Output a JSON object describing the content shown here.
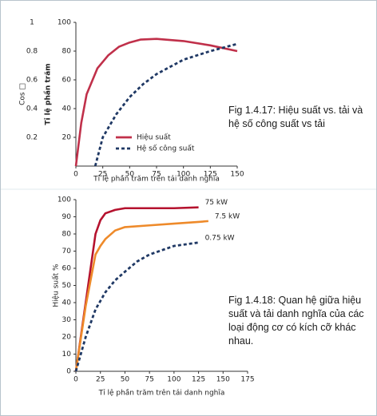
{
  "chart_data": [
    {
      "type": "line",
      "caption": "Fig 1.4.17: Hiệu suất vs. tải và hệ số công suất vs tải",
      "xlabel": "Tỉ lệ phần trăm trên tải danh nghĩa",
      "ylabel": "Tỉ lệ phần trăm",
      "y2label": "Cos □",
      "xlim": [
        0,
        150
      ],
      "xticks": [
        0,
        25,
        50,
        75,
        100,
        125,
        150
      ],
      "ylim": [
        0,
        100
      ],
      "yticks": [
        20,
        40,
        60,
        80,
        100
      ],
      "y2lim": [
        0,
        1
      ],
      "y2ticks": [
        0.2,
        0.4,
        0.6,
        0.8,
        1
      ],
      "legend": "lower right",
      "series": [
        {
          "name": "Hiệu suất",
          "color": "#c0304a",
          "dash": false,
          "x": [
            0,
            5,
            10,
            20,
            30,
            40,
            50,
            60,
            75,
            100,
            125,
            150
          ],
          "values": [
            0,
            30,
            50,
            68,
            77,
            83,
            86,
            88,
            88.5,
            87,
            84,
            80
          ]
        },
        {
          "name": "Hệ số công suất",
          "color": "#1f3864",
          "dash": true,
          "axis": "y2",
          "x": [
            18,
            25,
            37.5,
            50,
            62.5,
            75,
            100,
            125,
            150
          ],
          "values": [
            0,
            0.2,
            0.36,
            0.48,
            0.57,
            0.64,
            0.74,
            0.8,
            0.85
          ]
        }
      ]
    },
    {
      "type": "line",
      "caption": "Fig 1.4.18: Quan hệ giữa hiệu suất và tải danh nghĩa của các loại động cơ có kích cỡ khác nhau.",
      "xlabel": "Tỉ lệ phần trăm trên tải danh nghĩa",
      "ylabel": "Hiệu suất %",
      "xlim": [
        0,
        175
      ],
      "xticks": [
        0,
        25,
        50,
        75,
        100,
        125,
        150,
        175
      ],
      "ylim": [
        0,
        100
      ],
      "yticks": [
        0,
        10,
        20,
        30,
        40,
        50,
        60,
        70,
        80,
        90,
        100
      ],
      "legend": "line end",
      "series": [
        {
          "name": "75 kW",
          "color": "#b5122e",
          "dash": false,
          "x": [
            0,
            10,
            20,
            25,
            30,
            40,
            50,
            75,
            100,
            125
          ],
          "values": [
            0,
            40,
            80,
            88,
            92,
            94,
            95,
            95,
            95,
            95.5
          ]
        },
        {
          "name": "7.5 kW",
          "color": "#ee8a2a",
          "dash": false,
          "x": [
            0,
            10,
            20,
            25,
            30,
            40,
            50,
            75,
            100,
            125,
            135
          ],
          "values": [
            0,
            38,
            68,
            73,
            77,
            82,
            84,
            85,
            86,
            87,
            87.5
          ]
        },
        {
          "name": "0.75 kW",
          "color": "#1f3864",
          "dash": true,
          "x": [
            0,
            10,
            20,
            30,
            40,
            50,
            62.5,
            75,
            100,
            125
          ],
          "values": [
            0,
            20,
            36,
            46,
            53,
            58,
            64,
            68,
            73,
            75
          ]
        }
      ]
    }
  ]
}
